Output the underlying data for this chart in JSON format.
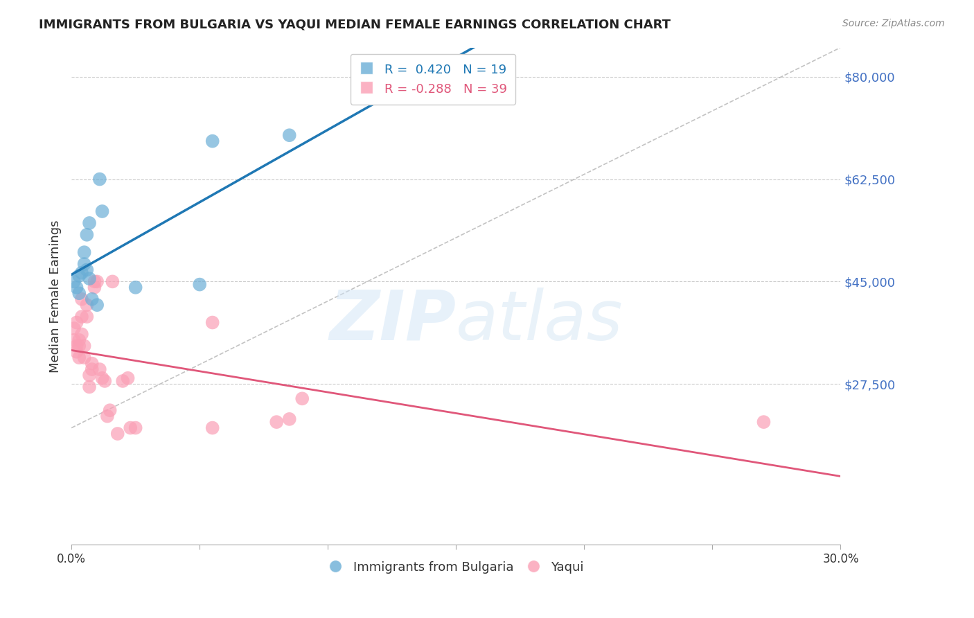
{
  "title": "IMMIGRANTS FROM BULGARIA VS YAQUI MEDIAN FEMALE EARNINGS CORRELATION CHART",
  "source": "Source: ZipAtlas.com",
  "xlabel_label": "",
  "ylabel_label": "Median Female Earnings",
  "x_ticks": [
    0.0,
    0.05,
    0.1,
    0.15,
    0.2,
    0.25,
    0.3
  ],
  "x_tick_labels": [
    "0.0%",
    "",
    "",
    "",
    "",
    "",
    "30.0%"
  ],
  "y_ticks": [
    0,
    27500,
    45000,
    62500,
    80000
  ],
  "y_tick_labels": [
    "",
    "$27,500",
    "$45,000",
    "$62,500",
    "$80,000"
  ],
  "xlim": [
    0.0,
    0.3
  ],
  "ylim": [
    0,
    85000
  ],
  "bg_color": "#ffffff",
  "grid_color": "#cccccc",
  "watermark": "ZIPatlas",
  "bulgaria_color": "#6baed6",
  "yaqui_color": "#fa9fb5",
  "bulgaria_R": 0.42,
  "bulgaria_N": 19,
  "yaqui_R": -0.288,
  "yaqui_N": 39,
  "bulgaria_x": [
    0.001,
    0.002,
    0.003,
    0.003,
    0.004,
    0.005,
    0.005,
    0.006,
    0.006,
    0.007,
    0.007,
    0.008,
    0.01,
    0.011,
    0.012,
    0.025,
    0.05,
    0.055,
    0.085
  ],
  "bulgaria_y": [
    45000,
    44000,
    46000,
    43000,
    46500,
    50000,
    48000,
    47000,
    53000,
    55000,
    45500,
    42000,
    41000,
    62500,
    57000,
    44000,
    44500,
    69000,
    70000
  ],
  "yaqui_x": [
    0.001,
    0.001,
    0.002,
    0.002,
    0.002,
    0.003,
    0.003,
    0.003,
    0.004,
    0.004,
    0.004,
    0.005,
    0.005,
    0.006,
    0.006,
    0.007,
    0.007,
    0.008,
    0.008,
    0.009,
    0.009,
    0.01,
    0.011,
    0.012,
    0.013,
    0.014,
    0.015,
    0.016,
    0.018,
    0.02,
    0.022,
    0.023,
    0.025,
    0.055,
    0.055,
    0.08,
    0.085,
    0.09,
    0.27
  ],
  "yaqui_y": [
    37000,
    35000,
    38000,
    34000,
    33000,
    35000,
    34000,
    32000,
    42000,
    39000,
    36000,
    34000,
    32000,
    41000,
    39000,
    29000,
    27000,
    31000,
    30000,
    45000,
    44000,
    45000,
    30000,
    28500,
    28000,
    22000,
    23000,
    45000,
    19000,
    28000,
    28500,
    20000,
    20000,
    38000,
    20000,
    21000,
    21500,
    25000,
    21000
  ],
  "bulgaria_line_color": "#1f78b4",
  "yaqui_line_color": "#e0577a",
  "dashed_line_color": "#aaaaaa",
  "legend_R_bulgaria": "R =  0.420",
  "legend_N_bulgaria": "N = 19",
  "legend_R_yaqui": "R = -0.288",
  "legend_N_yaqui": "N = 39",
  "legend_label_bulgaria": "Immigrants from Bulgaria",
  "legend_label_yaqui": "Yaqui"
}
